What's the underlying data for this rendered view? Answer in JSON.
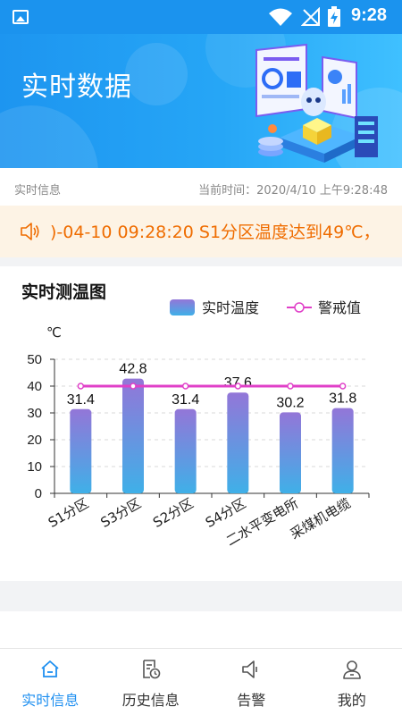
{
  "status_bar": {
    "time": "9:28"
  },
  "banner": {
    "title": "实时数据"
  },
  "info_row": {
    "left": "实时信息",
    "right": "当前时间：2020/4/10 上午9:28:48"
  },
  "alert": {
    "text": ")-04-10 09:28:20 S1分区温度达到49℃，",
    "color": "#ef6c00"
  },
  "chart_card": {
    "title": "实时测温图"
  },
  "chart_data": {
    "type": "bar",
    "title": "实时测温图",
    "ylabel": "℃",
    "ylim": [
      0,
      50
    ],
    "yticks": [
      0,
      10,
      20,
      30,
      40,
      50
    ],
    "categories": [
      "S1分区",
      "S3分区",
      "S2分区",
      "S4分区",
      "二水平变电所",
      "采煤机电缆"
    ],
    "series": [
      {
        "name": "实时温度",
        "type": "bar",
        "values": [
          31.4,
          42.8,
          31.4,
          37.6,
          30.2,
          31.8
        ],
        "color": "#8f7bd6"
      },
      {
        "name": "警戒值",
        "type": "line",
        "values": [
          40,
          40,
          40,
          40,
          40,
          40
        ],
        "color": "#e040c8"
      }
    ],
    "legend_position": "top-right",
    "grid": true
  },
  "tabs": [
    {
      "label": "实时信息",
      "icon": "home-icon",
      "active": true
    },
    {
      "label": "历史信息",
      "icon": "history-icon",
      "active": false
    },
    {
      "label": "告警",
      "icon": "alarm-icon",
      "active": false
    },
    {
      "label": "我的",
      "icon": "user-icon",
      "active": false
    }
  ],
  "colors": {
    "primary": "#1e8ff0",
    "alert_bg": "#fdf3e5"
  }
}
